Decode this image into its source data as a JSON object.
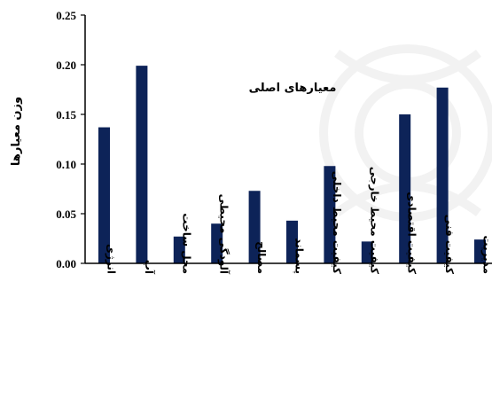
{
  "chart_data": {
    "type": "bar",
    "title": "معیارهای اصلی",
    "ylabel": "وزن معیارها",
    "xlabel": "",
    "ylim": [
      0,
      0.25
    ],
    "yticks": [
      "0.00",
      "0.05",
      "0.10",
      "0.15",
      "0.20",
      "0.25"
    ],
    "categories": [
      "انرژی",
      "آب",
      "محل ساخت",
      "آلودگی محیطی",
      "مصالح",
      "پسماند",
      "کیفیت محیط داخلی",
      "کیفیت محیط خارجی",
      "کیفیت اقتصادی",
      "کیفیت فنی",
      "مدیریت"
    ],
    "values": [
      0.137,
      0.199,
      0.027,
      0.04,
      0.073,
      0.043,
      0.098,
      0.022,
      0.15,
      0.177,
      0.024
    ],
    "bar_color": "#0d2358",
    "grid": false,
    "legend": "none"
  }
}
